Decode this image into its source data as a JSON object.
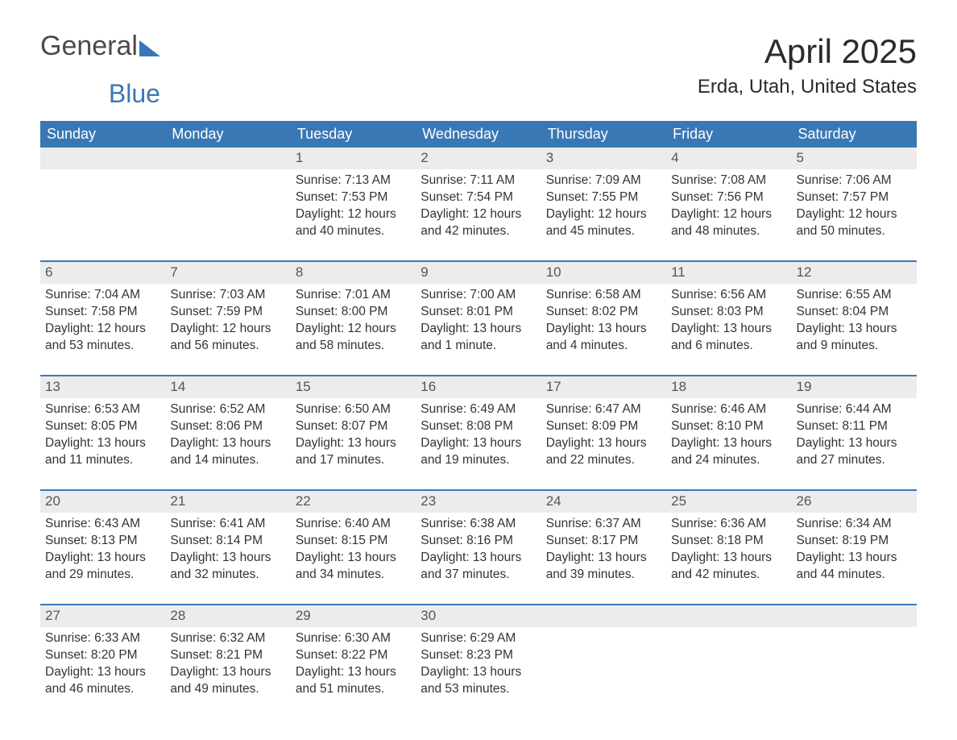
{
  "logo": {
    "word1": "General",
    "word2": "Blue"
  },
  "title": "April 2025",
  "location": "Erda, Utah, United States",
  "colors": {
    "accent": "#3a78b5",
    "header_bg": "#3a78b5",
    "header_text": "#ffffff",
    "daynum_bg": "#ececec",
    "daynum_text": "#555555",
    "body_text": "#333333",
    "background": "#ffffff",
    "week_border": "#3a78b5"
  },
  "typography": {
    "title_fontsize": 42,
    "location_fontsize": 24,
    "weekday_fontsize": 18,
    "daynum_fontsize": 17,
    "body_fontsize": 15.5,
    "font_family": "Segoe UI"
  },
  "labels": {
    "sunrise": "Sunrise:",
    "sunset": "Sunset:",
    "daylight": "Daylight:",
    "hours": "hours",
    "and": "and",
    "minutes": "minutes.",
    "minute": "minute."
  },
  "weekdays": [
    "Sunday",
    "Monday",
    "Tuesday",
    "Wednesday",
    "Thursday",
    "Friday",
    "Saturday"
  ],
  "weeks": [
    [
      null,
      null,
      {
        "d": "1",
        "sr": "7:13 AM",
        "ss": "7:53 PM",
        "dh": 12,
        "dm": 40
      },
      {
        "d": "2",
        "sr": "7:11 AM",
        "ss": "7:54 PM",
        "dh": 12,
        "dm": 42
      },
      {
        "d": "3",
        "sr": "7:09 AM",
        "ss": "7:55 PM",
        "dh": 12,
        "dm": 45
      },
      {
        "d": "4",
        "sr": "7:08 AM",
        "ss": "7:56 PM",
        "dh": 12,
        "dm": 48
      },
      {
        "d": "5",
        "sr": "7:06 AM",
        "ss": "7:57 PM",
        "dh": 12,
        "dm": 50
      }
    ],
    [
      {
        "d": "6",
        "sr": "7:04 AM",
        "ss": "7:58 PM",
        "dh": 12,
        "dm": 53
      },
      {
        "d": "7",
        "sr": "7:03 AM",
        "ss": "7:59 PM",
        "dh": 12,
        "dm": 56
      },
      {
        "d": "8",
        "sr": "7:01 AM",
        "ss": "8:00 PM",
        "dh": 12,
        "dm": 58
      },
      {
        "d": "9",
        "sr": "7:00 AM",
        "ss": "8:01 PM",
        "dh": 13,
        "dm": 1
      },
      {
        "d": "10",
        "sr": "6:58 AM",
        "ss": "8:02 PM",
        "dh": 13,
        "dm": 4
      },
      {
        "d": "11",
        "sr": "6:56 AM",
        "ss": "8:03 PM",
        "dh": 13,
        "dm": 6
      },
      {
        "d": "12",
        "sr": "6:55 AM",
        "ss": "8:04 PM",
        "dh": 13,
        "dm": 9
      }
    ],
    [
      {
        "d": "13",
        "sr": "6:53 AM",
        "ss": "8:05 PM",
        "dh": 13,
        "dm": 11
      },
      {
        "d": "14",
        "sr": "6:52 AM",
        "ss": "8:06 PM",
        "dh": 13,
        "dm": 14
      },
      {
        "d": "15",
        "sr": "6:50 AM",
        "ss": "8:07 PM",
        "dh": 13,
        "dm": 17
      },
      {
        "d": "16",
        "sr": "6:49 AM",
        "ss": "8:08 PM",
        "dh": 13,
        "dm": 19
      },
      {
        "d": "17",
        "sr": "6:47 AM",
        "ss": "8:09 PM",
        "dh": 13,
        "dm": 22
      },
      {
        "d": "18",
        "sr": "6:46 AM",
        "ss": "8:10 PM",
        "dh": 13,
        "dm": 24
      },
      {
        "d": "19",
        "sr": "6:44 AM",
        "ss": "8:11 PM",
        "dh": 13,
        "dm": 27
      }
    ],
    [
      {
        "d": "20",
        "sr": "6:43 AM",
        "ss": "8:13 PM",
        "dh": 13,
        "dm": 29
      },
      {
        "d": "21",
        "sr": "6:41 AM",
        "ss": "8:14 PM",
        "dh": 13,
        "dm": 32
      },
      {
        "d": "22",
        "sr": "6:40 AM",
        "ss": "8:15 PM",
        "dh": 13,
        "dm": 34
      },
      {
        "d": "23",
        "sr": "6:38 AM",
        "ss": "8:16 PM",
        "dh": 13,
        "dm": 37
      },
      {
        "d": "24",
        "sr": "6:37 AM",
        "ss": "8:17 PM",
        "dh": 13,
        "dm": 39
      },
      {
        "d": "25",
        "sr": "6:36 AM",
        "ss": "8:18 PM",
        "dh": 13,
        "dm": 42
      },
      {
        "d": "26",
        "sr": "6:34 AM",
        "ss": "8:19 PM",
        "dh": 13,
        "dm": 44
      }
    ],
    [
      {
        "d": "27",
        "sr": "6:33 AM",
        "ss": "8:20 PM",
        "dh": 13,
        "dm": 46
      },
      {
        "d": "28",
        "sr": "6:32 AM",
        "ss": "8:21 PM",
        "dh": 13,
        "dm": 49
      },
      {
        "d": "29",
        "sr": "6:30 AM",
        "ss": "8:22 PM",
        "dh": 13,
        "dm": 51
      },
      {
        "d": "30",
        "sr": "6:29 AM",
        "ss": "8:23 PM",
        "dh": 13,
        "dm": 53
      },
      null,
      null,
      null
    ]
  ]
}
